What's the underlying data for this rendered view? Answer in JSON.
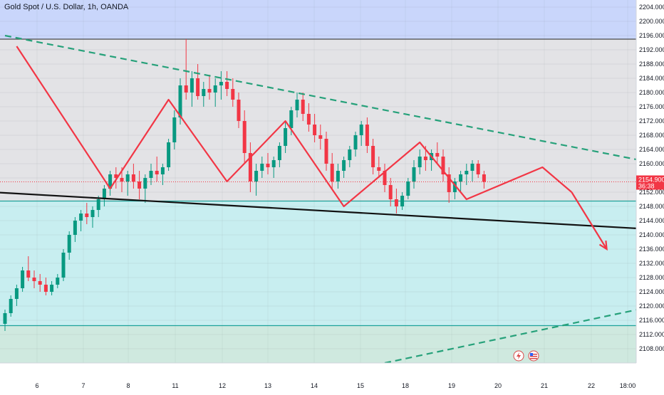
{
  "chart_data": {
    "type": "candlestick",
    "title": "Gold Spot / U.S. Dollar, 1h, OANDA",
    "ylim": [
      2104,
      2206
    ],
    "y_ticks": [
      "2204.000",
      "2200.000",
      "2196.000",
      "2192.000",
      "2188.000",
      "2184.000",
      "2180.000",
      "2176.000",
      "2172.000",
      "2168.000",
      "2164.000",
      "2160.000",
      "2156.000",
      "2152.000",
      "2148.000",
      "2144.000",
      "2140.000",
      "2136.000",
      "2132.000",
      "2128.000",
      "2124.000",
      "2120.000",
      "2116.000",
      "2112.000",
      "2108.000"
    ],
    "x_ticks": [
      "6",
      "7",
      "8",
      "11",
      "12",
      "13",
      "14",
      "15",
      "18",
      "19",
      "20",
      "21",
      "22",
      "18:00"
    ],
    "current_price": "2154.900",
    "countdown": "36:38",
    "zones": [
      {
        "name": "upper zone",
        "from": 2195,
        "to": 2206,
        "color": "#c9d6fb"
      },
      {
        "name": "middle zone",
        "from": 2149.5,
        "to": 2195,
        "color": "#e3e3e6"
      },
      {
        "name": "lower zone",
        "from": 2114.5,
        "to": 2149.5,
        "color": "#c8eef0"
      },
      {
        "name": "bottom zone",
        "from": 2104,
        "to": 2114.5,
        "color": "#cfe9df"
      }
    ],
    "horizontal_levels": [
      2195,
      2149.5,
      2114.5
    ],
    "candles": [
      [
        2115,
        2119,
        2113,
        2118
      ],
      [
        2118,
        2123,
        2117,
        2122
      ],
      [
        2122,
        2126,
        2120,
        2125
      ],
      [
        2125,
        2131,
        2124,
        2130
      ],
      [
        2130,
        2134,
        2127,
        2128
      ],
      [
        2128,
        2130,
        2125,
        2127
      ],
      [
        2127,
        2129,
        2124,
        2126
      ],
      [
        2126,
        2128,
        2123,
        2124
      ],
      [
        2124,
        2127,
        2123,
        2126
      ],
      [
        2126,
        2129,
        2125,
        2128
      ],
      [
        2128,
        2136,
        2127,
        2135
      ],
      [
        2135,
        2141,
        2133,
        2140
      ],
      [
        2140,
        2145,
        2138,
        2144
      ],
      [
        2144,
        2147,
        2141,
        2146
      ],
      [
        2146,
        2149,
        2143,
        2145
      ],
      [
        2145,
        2148,
        2142,
        2147
      ],
      [
        2147,
        2151,
        2145,
        2150
      ],
      [
        2150,
        2154,
        2148,
        2153
      ],
      [
        2153,
        2158,
        2151,
        2157
      ],
      [
        2157,
        2159,
        2153,
        2156
      ],
      [
        2156,
        2159,
        2152,
        2155
      ],
      [
        2155,
        2158,
        2151,
        2157
      ],
      [
        2157,
        2160,
        2153,
        2155
      ],
      [
        2155,
        2158,
        2150,
        2153
      ],
      [
        2153,
        2157,
        2149,
        2156
      ],
      [
        2156,
        2160,
        2154,
        2158
      ],
      [
        2158,
        2162,
        2155,
        2157
      ],
      [
        2157,
        2160,
        2154,
        2159
      ],
      [
        2159,
        2167,
        2158,
        2166
      ],
      [
        2166,
        2175,
        2164,
        2173
      ],
      [
        2173,
        2184,
        2171,
        2182
      ],
      [
        2182,
        2195,
        2178,
        2180
      ],
      [
        2180,
        2186,
        2176,
        2184
      ],
      [
        2184,
        2188,
        2178,
        2179
      ],
      [
        2179,
        2183,
        2176,
        2181
      ],
      [
        2181,
        2185,
        2178,
        2180
      ],
      [
        2180,
        2184,
        2176,
        2182
      ],
      [
        2182,
        2186,
        2178,
        2183
      ],
      [
        2183,
        2186,
        2179,
        2181
      ],
      [
        2181,
        2184,
        2176,
        2178
      ],
      [
        2178,
        2180,
        2170,
        2172
      ],
      [
        2172,
        2175,
        2160,
        2163
      ],
      [
        2163,
        2166,
        2152,
        2155
      ],
      [
        2155,
        2160,
        2151,
        2158
      ],
      [
        2158,
        2162,
        2156,
        2160
      ],
      [
        2160,
        2163,
        2157,
        2159
      ],
      [
        2159,
        2162,
        2156,
        2161
      ],
      [
        2161,
        2166,
        2159,
        2165
      ],
      [
        2165,
        2172,
        2163,
        2170
      ],
      [
        2170,
        2176,
        2168,
        2175
      ],
      [
        2175,
        2180,
        2173,
        2178
      ],
      [
        2178,
        2180,
        2172,
        2174
      ],
      [
        2174,
        2177,
        2169,
        2171
      ],
      [
        2171,
        2174,
        2166,
        2168
      ],
      [
        2168,
        2171,
        2164,
        2167
      ],
      [
        2167,
        2169,
        2158,
        2160
      ],
      [
        2160,
        2163,
        2153,
        2155
      ],
      [
        2155,
        2160,
        2153,
        2158
      ],
      [
        2158,
        2162,
        2156,
        2161
      ],
      [
        2161,
        2165,
        2159,
        2164
      ],
      [
        2164,
        2169,
        2162,
        2168
      ],
      [
        2168,
        2172,
        2165,
        2171
      ],
      [
        2171,
        2173,
        2163,
        2165
      ],
      [
        2165,
        2167,
        2157,
        2159
      ],
      [
        2159,
        2162,
        2156,
        2158
      ],
      [
        2158,
        2160,
        2152,
        2154
      ],
      [
        2154,
        2156,
        2148,
        2150
      ],
      [
        2150,
        2153,
        2146,
        2148
      ],
      [
        2148,
        2152,
        2147,
        2151
      ],
      [
        2151,
        2156,
        2150,
        2155
      ],
      [
        2155,
        2161,
        2153,
        2159
      ],
      [
        2159,
        2164,
        2157,
        2162
      ],
      [
        2162,
        2165,
        2158,
        2161
      ],
      [
        2161,
        2164,
        2158,
        2163
      ],
      [
        2163,
        2166,
        2160,
        2162
      ],
      [
        2162,
        2164,
        2155,
        2157
      ],
      [
        2157,
        2159,
        2149,
        2152
      ],
      [
        2152,
        2156,
        2150,
        2155
      ],
      [
        2155,
        2158,
        2152,
        2157
      ],
      [
        2157,
        2160,
        2154,
        2158
      ],
      [
        2158,
        2161,
        2155,
        2160
      ],
      [
        2160,
        2161,
        2156,
        2157
      ],
      [
        2157,
        2158,
        2153,
        2154.9
      ]
    ],
    "pattern_zigzag": [
      [
        2,
        2193
      ],
      [
        18,
        2153
      ],
      [
        28,
        2178
      ],
      [
        38,
        2155
      ],
      [
        48,
        2172
      ],
      [
        58,
        2148
      ],
      [
        71,
        2166
      ],
      [
        79,
        2150
      ],
      [
        92,
        2159
      ],
      [
        97,
        2152
      ]
    ],
    "projection_arrow": [
      [
        97,
        2152
      ],
      [
        103,
        2136
      ]
    ],
    "trendlines": [
      {
        "name": "descending resistance",
        "style": "dashed",
        "color": "#26a17a",
        "points": [
          [
            0,
            2196
          ],
          [
            118,
            2158
          ]
        ]
      },
      {
        "name": "support",
        "style": "solid",
        "color": "#111111",
        "points": [
          [
            -13,
            2153
          ],
          [
            117,
            2141
          ]
        ]
      },
      {
        "name": "ascending line",
        "style": "dashed",
        "color": "#26a17a",
        "points": [
          [
            65,
            2104
          ],
          [
            140,
            2130
          ]
        ]
      }
    ]
  }
}
